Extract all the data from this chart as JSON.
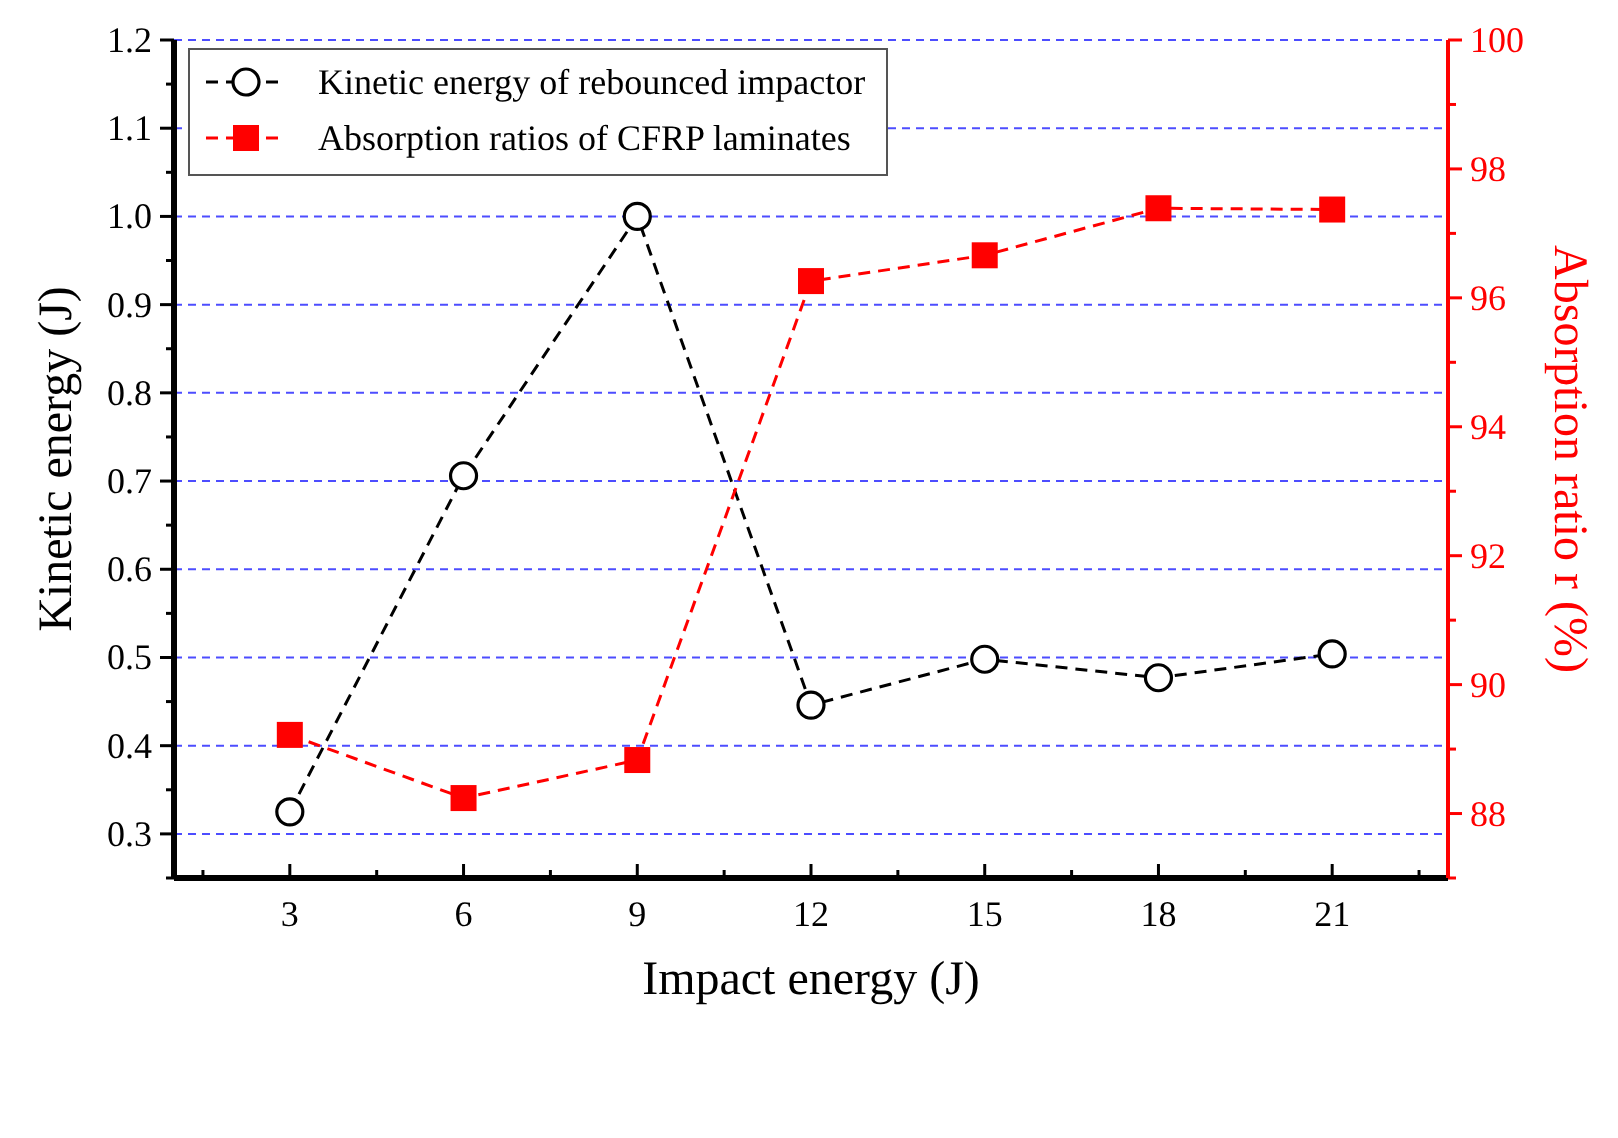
{
  "chart_data": {
    "type": "line",
    "xlabel": "Impact energy (J)",
    "ylabel": "Kinetic energy (J)",
    "y2label": "Absorption ratio r (%)",
    "x": [
      3,
      6,
      9,
      12,
      15,
      18,
      21
    ],
    "series": [
      {
        "name": "Kinetic energy of rebounced impactor",
        "color": "#000000",
        "marker": "circle",
        "values": [
          0.325,
          0.706,
          1.0,
          0.446,
          0.498,
          0.477,
          0.504
        ]
      },
      {
        "name": "Absorption ratios of CFRP laminates",
        "color": "#ff0000",
        "marker": "square",
        "axis": "y2",
        "values": [
          89.22,
          88.24,
          88.83,
          96.26,
          96.66,
          97.39,
          97.37
        ]
      }
    ],
    "xlim": [
      1,
      23
    ],
    "xticks": [
      {
        "value": 1.5,
        "label": null
      },
      3,
      {
        "value": 4.5,
        "label": null
      },
      6,
      {
        "value": 7.5,
        "label": null
      },
      9,
      {
        "value": 10.5,
        "label": null
      },
      12,
      {
        "value": 13.5,
        "label": null
      },
      15,
      {
        "value": 16.5,
        "label": null
      },
      18,
      {
        "value": 19.5,
        "label": null
      },
      21,
      {
        "value": 22.5,
        "label": null
      }
    ],
    "ylim": [
      0.25,
      1.2
    ],
    "yticks": [
      {
        "value": 0.25,
        "label": null
      },
      0.3,
      {
        "value": 0.35,
        "label": null
      },
      0.4,
      {
        "value": 0.45,
        "label": null
      },
      0.5,
      {
        "value": 0.55,
        "label": null
      },
      0.6,
      {
        "value": 0.65,
        "label": null
      },
      0.7,
      {
        "value": 0.75,
        "label": null
      },
      0.8,
      {
        "value": 0.85,
        "label": null
      },
      0.9,
      {
        "value": 0.95,
        "label": null
      },
      {
        "value": 1,
        "label": "1.0"
      },
      {
        "value": 1.05,
        "label": null
      },
      1.1,
      {
        "value": 1.15,
        "label": null
      },
      1.2
    ],
    "y2lim": [
      87,
      100
    ],
    "y2ticks": [
      {
        "value": 87,
        "label": null
      },
      88,
      {
        "value": 89,
        "label": null
      },
      90,
      {
        "value": 91,
        "label": null
      },
      92,
      {
        "value": 93,
        "label": null
      },
      94,
      {
        "value": 95,
        "label": null
      },
      96,
      {
        "value": 97,
        "label": null
      },
      98,
      {
        "value": 99,
        "label": null
      },
      100
    ],
    "grid": "y",
    "legend": "top left",
    "line_style": "dashed"
  }
}
